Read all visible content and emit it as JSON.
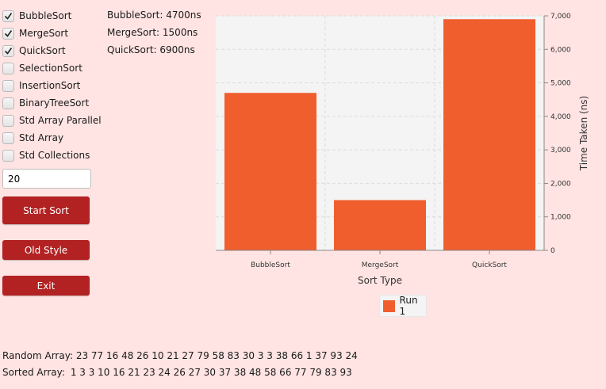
{
  "algorithms": [
    {
      "label": "BubbleSort",
      "checked": true
    },
    {
      "label": "MergeSort",
      "checked": true
    },
    {
      "label": "QuickSort",
      "checked": true
    },
    {
      "label": "SelectionSort",
      "checked": false
    },
    {
      "label": "InsertionSort",
      "checked": false
    },
    {
      "label": "BinaryTreeSort",
      "checked": false
    },
    {
      "label": "Std Array Parallel",
      "checked": false
    },
    {
      "label": "Std Array",
      "checked": false
    },
    {
      "label": "Std Collections",
      "checked": false
    }
  ],
  "size_input": {
    "value": "20"
  },
  "buttons": {
    "start": "Start Sort",
    "old_style": "Old Style",
    "exit": "Exit"
  },
  "timings": [
    "BubbleSort: 4700ns",
    "MergeSort: 1500ns",
    "QuickSort: 6900ns"
  ],
  "arrays": {
    "random_label": "Random Array:",
    "random_values": "23 77 16 48 26 10 21 27 79 58 83 30 3 3 38 66 1 37 93 24",
    "sorted_label": "Sorted Array:",
    "sorted_values": "1 3 3 10 16 21 23 24 26 27 30 37 38 48 58 66 77 79 83 93"
  },
  "colors": {
    "bar": "#f05e2e",
    "accent": "#b22222",
    "background": "#ffe4e3",
    "plot_bg": "#f4f4f4"
  },
  "chart_data": {
    "type": "bar",
    "categories": [
      "BubbleSort",
      "MergeSort",
      "QuickSort"
    ],
    "series": [
      {
        "name": "Run 1",
        "values": [
          4700,
          1500,
          6900
        ]
      }
    ],
    "xlabel": "Sort Type",
    "ylabel": "Time Taken (ns)",
    "ylim": [
      0,
      7000
    ],
    "yticks": [
      "0",
      "1,000",
      "2,000",
      "3,000",
      "4,000",
      "5,000",
      "6,000",
      "7,000"
    ],
    "y_axis_side": "right",
    "grid": true,
    "legend_position": "bottom"
  }
}
